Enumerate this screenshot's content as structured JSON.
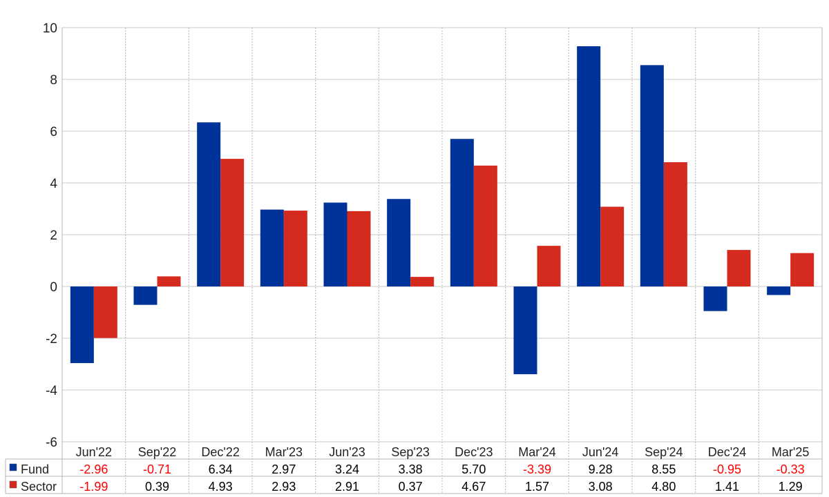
{
  "chart_data": {
    "type": "bar",
    "categories": [
      "Jun'22",
      "Sep'22",
      "Dec'22",
      "Mar'23",
      "Jun'23",
      "Sep'23",
      "Dec'23",
      "Mar'24",
      "Jun'24",
      "Sep'24",
      "Dec'24",
      "Mar'25"
    ],
    "series": [
      {
        "name": "Fund",
        "color": "#003399",
        "values": [
          -2.96,
          -0.71,
          6.34,
          2.97,
          3.24,
          3.38,
          5.7,
          -3.39,
          9.28,
          8.55,
          -0.95,
          -0.33
        ],
        "labels": [
          "-2.96",
          "-0.71",
          "6.34",
          "2.97",
          "3.24",
          "3.38",
          "5.70",
          "-3.39",
          "9.28",
          "8.55",
          "-0.95",
          "-0.33"
        ]
      },
      {
        "name": "Sector",
        "color": "#d52b1e",
        "values": [
          -1.99,
          0.39,
          4.93,
          2.93,
          2.91,
          0.37,
          4.67,
          1.57,
          3.08,
          4.8,
          1.41,
          1.29
        ],
        "labels": [
          "-1.99",
          "0.39",
          "4.93",
          "2.93",
          "2.91",
          "0.37",
          "4.67",
          "1.57",
          "3.08",
          "4.80",
          "1.41",
          "1.29"
        ]
      }
    ],
    "ylim": [
      -6,
      10
    ],
    "yticks": [
      -6,
      -4,
      -2,
      0,
      2,
      4,
      6,
      8,
      10
    ],
    "grid": true,
    "legend": "data-table",
    "negative_value_color": "#ff0000",
    "positive_value_color": "#000000"
  }
}
